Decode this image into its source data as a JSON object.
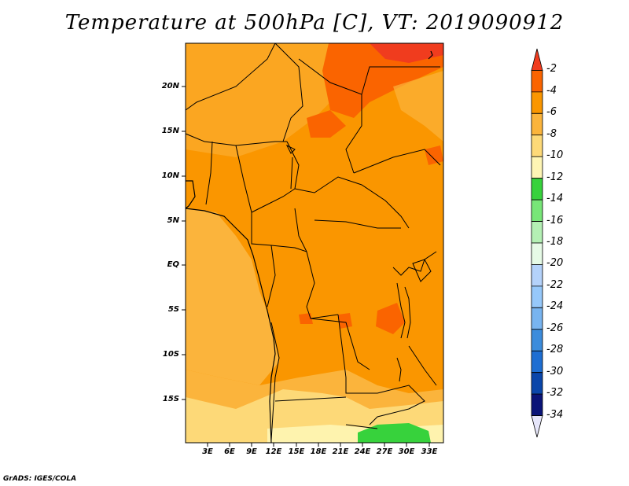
{
  "title": "Temperature at 500hPa [C], VT: 2019090912",
  "credit": "GrADS: IGES/COLA",
  "map": {
    "lat_ticks": [
      "20N",
      "15N",
      "10N",
      "5N",
      "EQ",
      "5S",
      "10S",
      "15S"
    ],
    "lon_ticks": [
      "3E",
      "6E",
      "9E",
      "12E",
      "15E",
      "18E",
      "21E",
      "24E",
      "27E",
      "30E",
      "33E"
    ]
  },
  "colorbar": {
    "labels": [
      "-2",
      "-4",
      "-6",
      "-8",
      "-10",
      "-12",
      "-14",
      "-16",
      "-18",
      "-20",
      "-22",
      "-24",
      "-26",
      "-28",
      "-30",
      "-32",
      "-34"
    ],
    "colors": [
      "#f03c1e",
      "#fa6400",
      "#fa9600",
      "#fbb43c",
      "#fdd978",
      "#fef5b4",
      "#37d23c",
      "#78e678",
      "#b4f0b4",
      "#e6fae6",
      "#b4d2fa",
      "#96c8fa",
      "#78b4f0",
      "#3c8cdc",
      "#1e6ed2",
      "#0a46aa",
      "#0a1478",
      "#e6e6fa"
    ]
  }
}
